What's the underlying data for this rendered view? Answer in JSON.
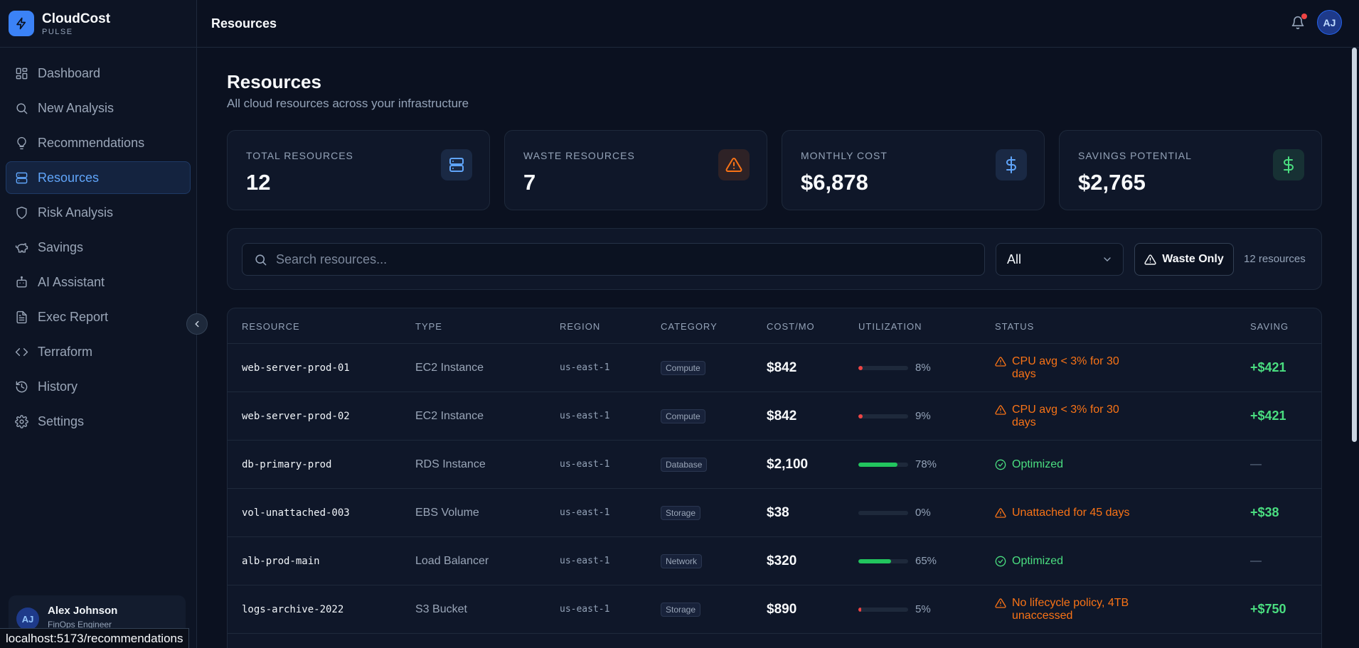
{
  "brand": {
    "name": "CloudCost",
    "sub": "PULSE"
  },
  "nav": [
    {
      "label": "Dashboard",
      "icon": "dashboard-icon"
    },
    {
      "label": "New Analysis",
      "icon": "search-icon"
    },
    {
      "label": "Recommendations",
      "icon": "lightbulb-icon"
    },
    {
      "label": "Resources",
      "icon": "server-icon",
      "active": true
    },
    {
      "label": "Risk Analysis",
      "icon": "shield-icon"
    },
    {
      "label": "Savings",
      "icon": "piggy-bank-icon"
    },
    {
      "label": "AI Assistant",
      "icon": "bot-icon"
    },
    {
      "label": "Exec Report",
      "icon": "document-icon"
    },
    {
      "label": "Terraform",
      "icon": "code-icon"
    },
    {
      "label": "History",
      "icon": "history-icon"
    },
    {
      "label": "Settings",
      "icon": "gear-icon"
    }
  ],
  "user": {
    "initials": "AJ",
    "name": "Alex Johnson",
    "role": "FinOps Engineer"
  },
  "url_status": "localhost:5173/recommendations",
  "topbar": {
    "title": "Resources",
    "avatar_initials": "AJ"
  },
  "page": {
    "title": "Resources",
    "subtitle": "All cloud resources across your infrastructure"
  },
  "stats": [
    {
      "label": "TOTAL RESOURCES",
      "value": "12",
      "icon": "server-icon",
      "accent": "#60a5fa"
    },
    {
      "label": "WASTE RESOURCES",
      "value": "7",
      "icon": "warning-icon",
      "accent": "#f97316"
    },
    {
      "label": "MONTHLY COST",
      "value": "$6,878",
      "icon": "dollar-icon",
      "accent": "#60a5fa"
    },
    {
      "label": "SAVINGS POTENTIAL",
      "value": "$2,765",
      "icon": "dollar-icon",
      "accent": "#4ade80"
    }
  ],
  "filters": {
    "search_placeholder": "Search resources...",
    "category_selected": "All",
    "waste_only_label": "Waste Only",
    "count_text": "12 resources"
  },
  "table": {
    "headers": [
      "RESOURCE",
      "TYPE",
      "REGION",
      "CATEGORY",
      "COST/MO",
      "UTILIZATION",
      "STATUS",
      "SAVING"
    ],
    "rows": [
      {
        "resource": "web-server-prod-01",
        "type": "EC2 Instance",
        "region": "us-east-1",
        "category": "Compute",
        "cost": "$842",
        "util": 8,
        "util_text": "8%",
        "status": "CPU avg < 3% for 30 days",
        "waste": true,
        "saving": "+$421"
      },
      {
        "resource": "web-server-prod-02",
        "type": "EC2 Instance",
        "region": "us-east-1",
        "category": "Compute",
        "cost": "$842",
        "util": 9,
        "util_text": "9%",
        "status": "CPU avg < 3% for 30 days",
        "waste": true,
        "saving": "+$421"
      },
      {
        "resource": "db-primary-prod",
        "type": "RDS Instance",
        "region": "us-east-1",
        "category": "Database",
        "cost": "$2,100",
        "util": 78,
        "util_text": "78%",
        "status": "Optimized",
        "waste": false,
        "saving": "—"
      },
      {
        "resource": "vol-unattached-003",
        "type": "EBS Volume",
        "region": "us-east-1",
        "category": "Storage",
        "cost": "$38",
        "util": 0,
        "util_text": "0%",
        "status": "Unattached for 45 days",
        "waste": true,
        "saving": "+$38"
      },
      {
        "resource": "alb-prod-main",
        "type": "Load Balancer",
        "region": "us-east-1",
        "category": "Network",
        "cost": "$320",
        "util": 65,
        "util_text": "65%",
        "status": "Optimized",
        "waste": false,
        "saving": "—"
      },
      {
        "resource": "logs-archive-2022",
        "type": "S3 Bucket",
        "region": "us-east-1",
        "category": "Storage",
        "cost": "$890",
        "util": 5,
        "util_text": "5%",
        "status": "No lifecycle policy, 4TB unaccessed",
        "waste": true,
        "saving": "+$750"
      }
    ]
  }
}
